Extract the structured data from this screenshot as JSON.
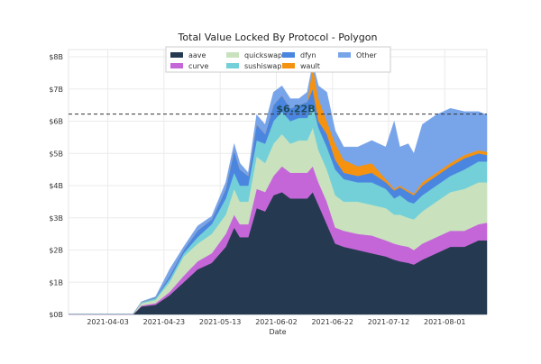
{
  "chart_data": {
    "type": "area",
    "stacked": true,
    "title": "Total Value Locked By Protocol - Polygon",
    "xlabel": "Date",
    "ylabel": "",
    "xlim": [
      "2021-03-20",
      "2021-08-16"
    ],
    "ylim": [
      0,
      8
    ],
    "y_unit": "billion USD",
    "yticks": [
      "$0B",
      "$1B",
      "$2B",
      "$3B",
      "$4B",
      "$5B",
      "$6B",
      "$7B",
      "$8B"
    ],
    "xticks": [
      "2021-04-03",
      "2021-04-23",
      "2021-05-13",
      "2021-06-02",
      "2021-06-22",
      "2021-07-12",
      "2021-08-01"
    ],
    "grid": true,
    "legend_position": "top-center",
    "reference_line": {
      "value": 6.22,
      "label": "$6.22B",
      "style": "dashed"
    },
    "dates": [
      "2021-03-20",
      "2021-04-12",
      "2021-04-15",
      "2021-04-20",
      "2021-04-25",
      "2021-04-30",
      "2021-05-05",
      "2021-05-10",
      "2021-05-15",
      "2021-05-18",
      "2021-05-20",
      "2021-05-23",
      "2021-05-26",
      "2021-05-29",
      "2021-06-01",
      "2021-06-04",
      "2021-06-07",
      "2021-06-10",
      "2021-06-13",
      "2021-06-15",
      "2021-06-17",
      "2021-06-20",
      "2021-06-23",
      "2021-06-26",
      "2021-07-01",
      "2021-07-06",
      "2021-07-11",
      "2021-07-14",
      "2021-07-16",
      "2021-07-19",
      "2021-07-21",
      "2021-07-24",
      "2021-07-29",
      "2021-08-03",
      "2021-08-08",
      "2021-08-13",
      "2021-08-16"
    ],
    "series": [
      {
        "name": "aave",
        "color": "#253a50",
        "values": [
          0,
          0,
          0.25,
          0.3,
          0.6,
          1.0,
          1.4,
          1.6,
          2.1,
          2.7,
          2.4,
          2.4,
          3.3,
          3.2,
          3.7,
          3.8,
          3.6,
          3.6,
          3.6,
          3.8,
          3.4,
          2.8,
          2.2,
          2.1,
          2.0,
          1.9,
          1.8,
          1.7,
          1.65,
          1.6,
          1.55,
          1.7,
          1.9,
          2.1,
          2.1,
          2.3,
          2.3
        ]
      },
      {
        "name": "curve",
        "color": "#c566d8",
        "values": [
          0,
          0,
          0.03,
          0.05,
          0.1,
          0.2,
          0.25,
          0.3,
          0.4,
          0.4,
          0.4,
          0.4,
          0.6,
          0.6,
          0.6,
          0.8,
          0.8,
          0.8,
          0.8,
          0.8,
          0.7,
          0.7,
          0.5,
          0.5,
          0.5,
          0.55,
          0.5,
          0.5,
          0.5,
          0.5,
          0.45,
          0.5,
          0.5,
          0.5,
          0.5,
          0.5,
          0.55
        ]
      },
      {
        "name": "quickswap",
        "color": "#c9e2bd",
        "values": [
          0.02,
          0.02,
          0.07,
          0.1,
          0.3,
          0.6,
          0.55,
          0.6,
          0.6,
          0.8,
          0.7,
          0.7,
          1.0,
          0.9,
          1.0,
          1.0,
          0.9,
          1.0,
          1.0,
          1.2,
          1.0,
          1.0,
          1.0,
          0.9,
          1.0,
          0.95,
          1.0,
          0.9,
          0.95,
          0.9,
          0.95,
          1.0,
          1.1,
          1.2,
          1.3,
          1.3,
          1.25
        ]
      },
      {
        "name": "sushiswap",
        "color": "#73d0d8",
        "values": [
          0,
          0,
          0.03,
          0.05,
          0.1,
          0.1,
          0.2,
          0.3,
          0.5,
          0.5,
          0.5,
          0.5,
          0.5,
          0.6,
          0.7,
          0.7,
          0.7,
          0.7,
          0.7,
          0.7,
          0.7,
          0.7,
          0.8,
          0.7,
          0.6,
          0.7,
          0.6,
          0.5,
          0.6,
          0.5,
          0.5,
          0.5,
          0.5,
          0.5,
          0.6,
          0.65,
          0.65
        ]
      },
      {
        "name": "dfyn",
        "color": "#4a86e0",
        "values": [
          0,
          0,
          0,
          0.03,
          0.1,
          0.1,
          0.2,
          0.15,
          0.3,
          0.7,
          0.5,
          0.3,
          0.5,
          0.3,
          0.5,
          0.5,
          0.4,
          0.4,
          0.5,
          0.5,
          0.2,
          0.4,
          0.3,
          0.2,
          0.2,
          0.3,
          0.2,
          0.25,
          0.25,
          0.3,
          0.25,
          0.3,
          0.3,
          0.3,
          0.35,
          0.25,
          0.2
        ]
      },
      {
        "name": "wault",
        "color": "#f5920f",
        "values": [
          0,
          0,
          0,
          0,
          0,
          0,
          0,
          0,
          0,
          0,
          0,
          0,
          0,
          0,
          0,
          0,
          0,
          0,
          0,
          0.7,
          0.7,
          0.4,
          0.5,
          0.4,
          0.3,
          0.3,
          0.1,
          0.05,
          0.05,
          0.05,
          0.05,
          0.1,
          0.1,
          0.1,
          0.1,
          0.1,
          0.1
        ]
      },
      {
        "name": "Other",
        "color": "#78a4ea",
        "values": [
          0,
          0,
          0.02,
          0.02,
          0.2,
          0.1,
          0.15,
          0.1,
          0.2,
          0.2,
          0.2,
          0.1,
          0.3,
          0.3,
          0.4,
          0.3,
          0.3,
          0.2,
          0.3,
          0.1,
          0.4,
          0.9,
          0.4,
          0.4,
          0.6,
          0.7,
          1.0,
          2.1,
          1.2,
          1.45,
          1.25,
          1.8,
          1.8,
          1.7,
          1.35,
          1.2,
          1.15
        ]
      }
    ]
  }
}
